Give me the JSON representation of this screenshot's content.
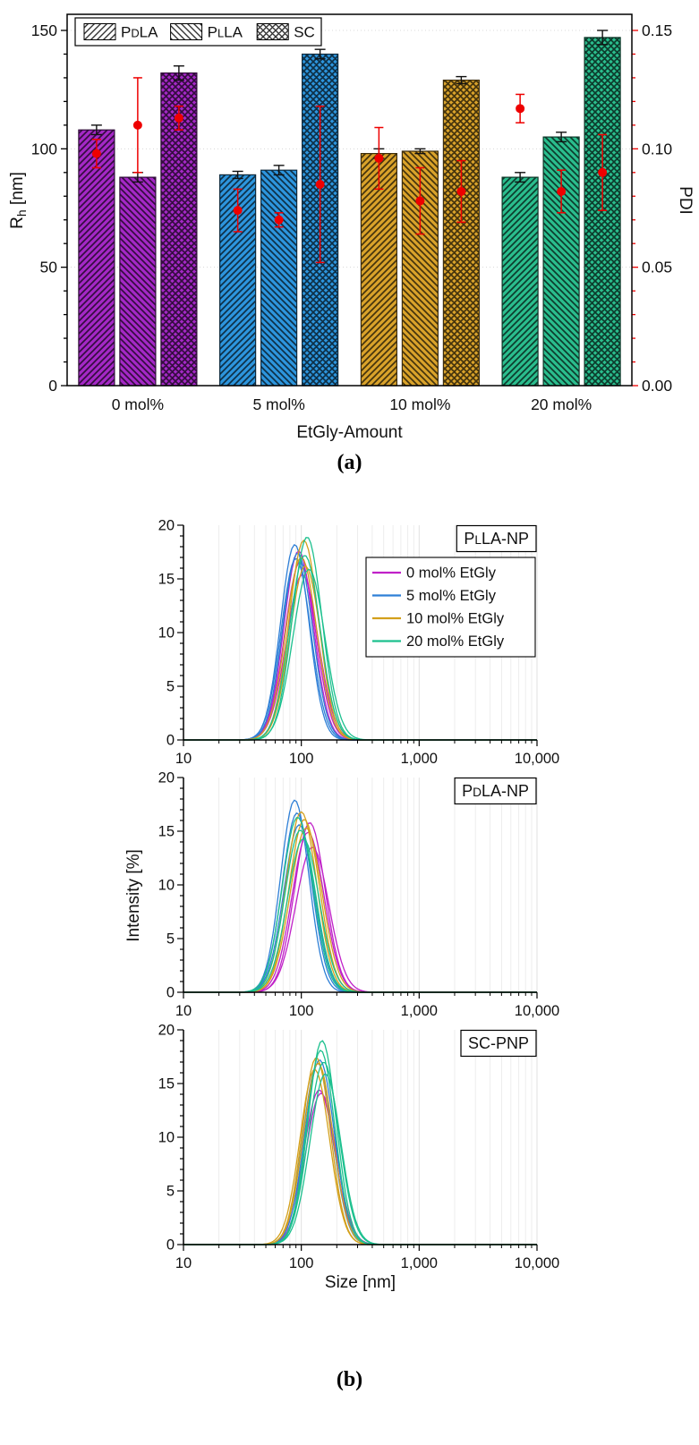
{
  "page": {
    "panel_a_label": "(a)",
    "panel_b_label": "(b)"
  },
  "chart_data": [
    {
      "id": "panel_a",
      "type": "bar",
      "xlabel": "EtGly-Amount",
      "ylabel_left": {
        "pre": "R",
        "sub": "h",
        "post": " [nm]"
      },
      "ylabel_right": "PDI",
      "ylim_left": [
        0,
        150
      ],
      "yticks_left": [
        0,
        50,
        100,
        150
      ],
      "ylim_right": [
        0,
        0.15
      ],
      "yticks_right": [
        "0.00",
        "0.05",
        "0.10",
        "0.15"
      ],
      "axis_right_color": "#ee0000",
      "grid": "dotted-horizontal",
      "legend_position": "top-left",
      "categories": [
        "0 mol%",
        "5 mol%",
        "10 mol%",
        "20 mol%"
      ],
      "group_colors": [
        "#A428C6",
        "#2D95DD",
        "#D9A22A",
        "#2ABD8D"
      ],
      "series": [
        {
          "name": "PDLA",
          "hatch": "forward",
          "rh": [
            108,
            89,
            98,
            88
          ],
          "rh_err": [
            2,
            1.5,
            2,
            2
          ],
          "pdi": [
            0.098,
            0.074,
            0.096,
            0.117
          ],
          "pdi_err": [
            0.006,
            0.009,
            0.013,
            0.006
          ]
        },
        {
          "name": "PLLA",
          "hatch": "back",
          "rh": [
            88,
            91,
            99,
            105
          ],
          "rh_err": [
            2,
            2,
            1,
            2
          ],
          "pdi": [
            0.11,
            0.07,
            0.078,
            0.082
          ],
          "pdi_err": [
            0.02,
            0.003,
            0.014,
            0.009
          ]
        },
        {
          "name": "SC",
          "hatch": "cross",
          "rh": [
            132,
            140,
            129,
            147
          ],
          "rh_err": [
            3,
            2,
            1.5,
            3
          ],
          "pdi": [
            0.113,
            0.085,
            0.082,
            0.09
          ],
          "pdi_err": [
            0.005,
            0.033,
            0.013,
            0.016
          ]
        }
      ]
    },
    {
      "id": "panel_b",
      "type": "line",
      "xlabel": "Size [nm]",
      "ylabel": "Intensity [%]",
      "xscale": "log",
      "xlim": [
        10,
        10000
      ],
      "xticks": [
        "10",
        "100",
        "1,000",
        "10,000"
      ],
      "ylim": [
        0,
        20
      ],
      "yticks": [
        0,
        5,
        10,
        15,
        20
      ],
      "grid": "vertical-log-minor",
      "legend": {
        "position": "top-right-first-plot",
        "entries": [
          "0 mol% EtGly",
          "5 mol% EtGly",
          "10 mol% EtGly",
          "20 mol% EtGly"
        ],
        "colors": {
          "0 mol% EtGly": "#C021C8",
          "5 mol% EtGly": "#2E7FD6",
          "10 mol% EtGly": "#D3A01C",
          "20 mol% EtGly": "#1CC08E"
        }
      },
      "plots": [
        {
          "title": "PLLA-NP",
          "show_legend": true,
          "curves": [
            {
              "series": "0 mol% EtGly",
              "peak_nm": 95,
              "peak_intensity": 17.6,
              "log_sigma": 0.125
            },
            {
              "series": "0 mol% EtGly",
              "peak_nm": 102,
              "peak_intensity": 15.4,
              "log_sigma": 0.135
            },
            {
              "series": "0 mol% EtGly",
              "peak_nm": 98,
              "peak_intensity": 16.6,
              "log_sigma": 0.13
            },
            {
              "series": "5 mol% EtGly",
              "peak_nm": 88,
              "peak_intensity": 18.2,
              "log_sigma": 0.12
            },
            {
              "series": "5 mol% EtGly",
              "peak_nm": 93,
              "peak_intensity": 17.4,
              "log_sigma": 0.125
            },
            {
              "series": "5 mol% EtGly",
              "peak_nm": 90,
              "peak_intensity": 16.9,
              "log_sigma": 0.125
            },
            {
              "series": "10 mol% EtGly",
              "peak_nm": 105,
              "peak_intensity": 18.6,
              "log_sigma": 0.125
            },
            {
              "series": "10 mol% EtGly",
              "peak_nm": 100,
              "peak_intensity": 17.0,
              "log_sigma": 0.13
            },
            {
              "series": "10 mol% EtGly",
              "peak_nm": 108,
              "peak_intensity": 16.2,
              "log_sigma": 0.13
            },
            {
              "series": "20 mol% EtGly",
              "peak_nm": 112,
              "peak_intensity": 18.9,
              "log_sigma": 0.125
            },
            {
              "series": "20 mol% EtGly",
              "peak_nm": 107,
              "peak_intensity": 17.2,
              "log_sigma": 0.13
            },
            {
              "series": "20 mol% EtGly",
              "peak_nm": 116,
              "peak_intensity": 15.9,
              "log_sigma": 0.135
            }
          ]
        },
        {
          "title": "PDLA-NP",
          "show_legend": false,
          "curves": [
            {
              "series": "0 mol% EtGly",
              "peak_nm": 118,
              "peak_intensity": 15.8,
              "log_sigma": 0.13
            },
            {
              "series": "0 mol% EtGly",
              "peak_nm": 124,
              "peak_intensity": 13.5,
              "log_sigma": 0.14
            },
            {
              "series": "0 mol% EtGly",
              "peak_nm": 114,
              "peak_intensity": 14.9,
              "log_sigma": 0.135
            },
            {
              "series": "5 mol% EtGly",
              "peak_nm": 88,
              "peak_intensity": 17.9,
              "log_sigma": 0.12
            },
            {
              "series": "5 mol% EtGly",
              "peak_nm": 92,
              "peak_intensity": 16.7,
              "log_sigma": 0.125
            },
            {
              "series": "5 mol% EtGly",
              "peak_nm": 96,
              "peak_intensity": 15.6,
              "log_sigma": 0.13
            },
            {
              "series": "10 mol% EtGly",
              "peak_nm": 100,
              "peak_intensity": 16.8,
              "log_sigma": 0.13
            },
            {
              "series": "10 mol% EtGly",
              "peak_nm": 106,
              "peak_intensity": 16.1,
              "log_sigma": 0.13
            },
            {
              "series": "10 mol% EtGly",
              "peak_nm": 110,
              "peak_intensity": 15.3,
              "log_sigma": 0.135
            },
            {
              "series": "20 mol% EtGly",
              "peak_nm": 93,
              "peak_intensity": 16.3,
              "log_sigma": 0.13
            },
            {
              "series": "20 mol% EtGly",
              "peak_nm": 98,
              "peak_intensity": 15.1,
              "log_sigma": 0.13
            },
            {
              "series": "20 mol% EtGly",
              "peak_nm": 104,
              "peak_intensity": 14.3,
              "log_sigma": 0.135
            }
          ]
        },
        {
          "title": "SC-PNP",
          "show_legend": false,
          "curves": [
            {
              "series": "0 mol% EtGly",
              "peak_nm": 142,
              "peak_intensity": 14.4,
              "log_sigma": 0.13
            },
            {
              "series": "0 mol% EtGly",
              "peak_nm": 147,
              "peak_intensity": 14.1,
              "log_sigma": 0.13
            },
            {
              "series": "5 mol% EtGly",
              "peak_nm": 138,
              "peak_intensity": 16.9,
              "log_sigma": 0.125
            },
            {
              "series": "5 mol% EtGly",
              "peak_nm": 143,
              "peak_intensity": 17.2,
              "log_sigma": 0.125
            },
            {
              "series": "10 mol% EtGly",
              "peak_nm": 134,
              "peak_intensity": 17.4,
              "log_sigma": 0.12
            },
            {
              "series": "10 mol% EtGly",
              "peak_nm": 139,
              "peak_intensity": 16.9,
              "log_sigma": 0.125
            },
            {
              "series": "10 mol% EtGly",
              "peak_nm": 130,
              "peak_intensity": 16.3,
              "log_sigma": 0.125
            },
            {
              "series": "20 mol% EtGly",
              "peak_nm": 150,
              "peak_intensity": 19.0,
              "log_sigma": 0.12
            },
            {
              "series": "20 mol% EtGly",
              "peak_nm": 146,
              "peak_intensity": 18.1,
              "log_sigma": 0.12
            },
            {
              "series": "20 mol% EtGly",
              "peak_nm": 155,
              "peak_intensity": 17.0,
              "log_sigma": 0.13
            },
            {
              "series": "20 mol% EtGly",
              "peak_nm": 160,
              "peak_intensity": 15.9,
              "log_sigma": 0.13
            }
          ]
        }
      ]
    }
  ]
}
